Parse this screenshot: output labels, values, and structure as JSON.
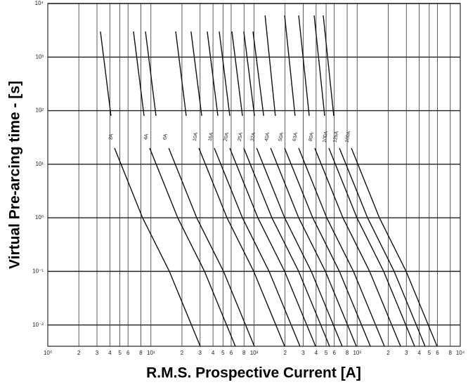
{
  "chart_data": {
    "type": "line",
    "xlabel": "R.M.S. Prospective Current [A]",
    "ylabel": "Virtual Pre-arcing time - [s]",
    "log_x": true,
    "log_y": true,
    "grid": true,
    "xlim": [
      1,
      10000
    ],
    "ylim": [
      0.004,
      10000
    ],
    "xticks": [
      {
        "value": 1,
        "label": "10⁰"
      },
      2,
      3,
      4,
      5,
      6,
      8,
      {
        "value": 10,
        "label": "10¹"
      },
      {
        "value": 20,
        "label": "2"
      },
      {
        "value": 30,
        "label": "3"
      },
      {
        "value": 40,
        "label": "4"
      },
      {
        "value": 50,
        "label": "5"
      },
      {
        "value": 60,
        "label": "6"
      },
      {
        "value": 80,
        "label": "8"
      },
      {
        "value": 100,
        "label": "10²"
      },
      {
        "value": 200,
        "label": "2"
      },
      {
        "value": 300,
        "label": "3"
      },
      {
        "value": 400,
        "label": "4"
      },
      {
        "value": 500,
        "label": "5"
      },
      {
        "value": 600,
        "label": "6"
      },
      {
        "value": 800,
        "label": "8"
      },
      {
        "value": 1000,
        "label": "10³"
      },
      {
        "value": 2000,
        "label": "2"
      },
      {
        "value": 3000,
        "label": "3"
      },
      {
        "value": 4000,
        "label": "4"
      },
      {
        "value": 5000,
        "label": "5"
      },
      {
        "value": 6000,
        "label": "6"
      },
      {
        "value": 8000,
        "label": "8"
      },
      {
        "value": 10000,
        "label": "10⁴"
      }
    ],
    "yticks": [
      {
        "value": 0.01,
        "label": "10⁻²"
      },
      {
        "value": 0.1,
        "label": "10⁻¹"
      },
      {
        "value": 1,
        "label": "10⁰"
      },
      {
        "value": 10,
        "label": "10¹"
      },
      {
        "value": 100,
        "label": "10²"
      },
      {
        "value": 1000,
        "label": "10³"
      },
      {
        "value": 10000,
        "label": "10⁴"
      }
    ],
    "series": [
      {
        "name": "2A",
        "color": "#111111",
        "x": [
          3.24,
          4.1,
          null,
          4.44,
          8.3,
          15.1,
          30.1
        ],
        "values": [
          3000,
          80,
          null,
          20,
          1,
          0.1,
          0.004
        ]
      },
      {
        "name": "4A",
        "color": "#111111",
        "x": [
          6.78,
          8.58,
          null,
          9.73,
          18.2,
          33.1,
          65.9
        ],
        "values": [
          3000,
          80,
          null,
          20,
          1,
          0.1,
          0.004
        ]
      },
      {
        "name": "6A",
        "color": "#111111",
        "x": [
          8.86,
          11.2,
          null,
          14.9,
          27.8,
          50.6,
          100.7
        ],
        "values": [
          3000,
          80,
          null,
          20,
          1,
          0.1,
          0.004
        ]
      },
      {
        "name": "10A",
        "color": "#111111",
        "x": [
          17.4,
          22.0,
          null,
          29.2,
          54.7,
          99.3,
          198
        ],
        "values": [
          3000,
          80,
          null,
          20,
          1,
          0.1,
          0.004
        ]
      },
      {
        "name": "16A",
        "color": "#111111",
        "x": [
          24.5,
          31.1,
          null,
          41.2,
          77.2,
          140,
          279
        ],
        "values": [
          3000,
          80,
          null,
          20,
          1,
          0.1,
          0.004
        ]
      },
      {
        "name": "20A",
        "color": "#111111",
        "x": [
          35.2,
          44.6,
          null,
          58.2,
          109,
          198,
          395
        ],
        "values": [
          3000,
          80,
          null,
          20,
          1,
          0.1,
          0.004
        ]
      },
      {
        "name": "25A",
        "color": "#111111",
        "x": [
          46.0,
          58.2,
          null,
          79.6,
          149,
          271,
          540
        ],
        "values": [
          3000,
          80,
          null,
          20,
          1,
          0.1,
          0.004
        ]
      },
      {
        "name": "32A",
        "color": "#111111",
        "x": [
          61.0,
          77.2,
          null,
          106,
          198,
          359,
          716
        ],
        "values": [
          3000,
          80,
          null,
          20,
          1,
          0.1,
          0.004
        ]
      },
      {
        "name": "40A",
        "color": "#111111",
        "x": [
          79.6,
          101,
          null,
          145,
          271,
          492,
          982
        ],
        "values": [
          3000,
          80,
          null,
          20,
          1,
          0.1,
          0.004
        ]
      },
      {
        "name": "50A",
        "color": "#111111",
        "x": [
          97.7,
          124,
          null,
          198,
          371,
          673,
          1343
        ],
        "values": [
          3000,
          80,
          null,
          20,
          1,
          0.1,
          0.004
        ]
      },
      {
        "name": "63A",
        "color": "#111111",
        "x": [
          128,
          161,
          null,
          271,
          507,
          921,
          1837
        ],
        "values": [
          6000,
          80,
          null,
          20,
          1,
          0.1,
          0.004
        ]
      },
      {
        "name": "80A",
        "color": "#111111",
        "x": [
          198,
          250,
          null,
          388,
          728,
          1321,
          2636
        ],
        "values": [
          6000,
          80,
          null,
          20,
          1,
          0.1,
          0.004
        ]
      },
      {
        "name": "100A",
        "color": "#111111",
        "x": [
          271,
          343,
          null,
          532,
          995,
          1808,
          3606
        ],
        "values": [
          6000,
          80,
          null,
          20,
          1,
          0.1,
          0.004
        ]
      },
      {
        "name": "125A",
        "color": "#111111",
        "x": [
          383,
          484,
          null,
          673,
          1262,
          2286,
          4560
        ],
        "values": [
          6000,
          80,
          null,
          20,
          1,
          0.1,
          0.004
        ]
      },
      {
        "name": "160A",
        "color": "#111111",
        "x": [
          469,
          593,
          null,
          879,
          1644,
          2985,
          5957
        ],
        "values": [
          6000,
          80,
          null,
          20,
          1,
          0.1,
          0.004
        ]
      }
    ]
  }
}
